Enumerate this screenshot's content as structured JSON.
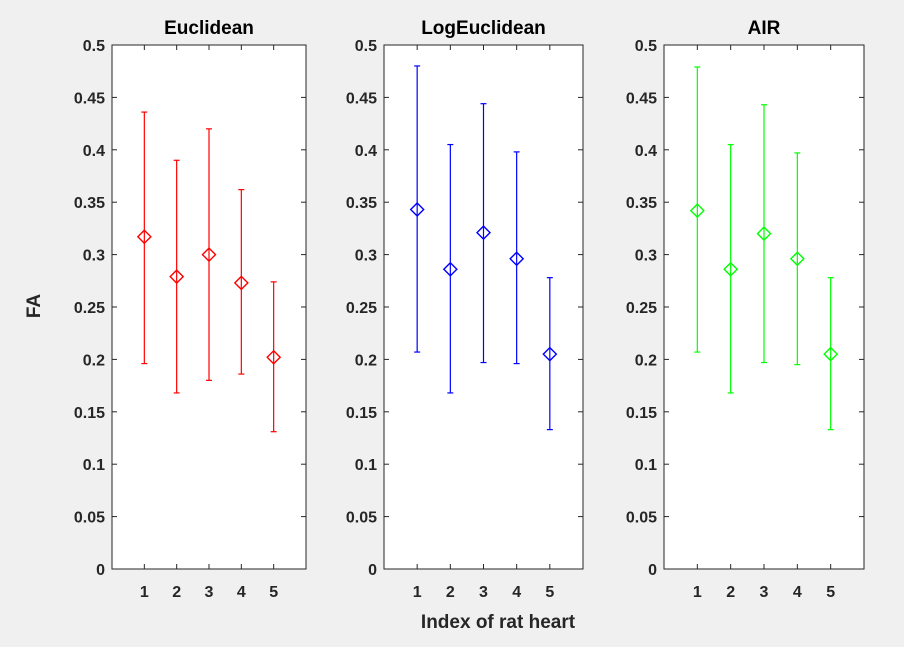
{
  "figure": {
    "background": "#f0f0f0",
    "axes_background": "#ffffff",
    "axes_color": "#262626",
    "xlabel": "Index of rat heart",
    "ylabel": "FA"
  },
  "chart_data": [
    {
      "type": "scatter",
      "title": "Euclidean",
      "color": "#ff0000",
      "marker": "diamond",
      "x": [
        1,
        2,
        3,
        4,
        5
      ],
      "y": [
        0.317,
        0.279,
        0.3,
        0.273,
        0.202
      ],
      "error_lower": [
        0.196,
        0.168,
        0.18,
        0.186,
        0.131
      ],
      "error_upper": [
        0.436,
        0.39,
        0.42,
        0.362,
        0.274
      ],
      "xlim": [
        0,
        6
      ],
      "ylim": [
        0,
        0.5
      ],
      "xticks": [
        "1",
        "2",
        "3",
        "4",
        "5"
      ],
      "yticks": [
        "0",
        "0.05",
        "0.1",
        "0.15",
        "0.2",
        "0.25",
        "0.3",
        "0.35",
        "0.4",
        "0.45",
        "0.5"
      ],
      "grid": false
    },
    {
      "type": "scatter",
      "title": "LogEuclidean",
      "color": "#0000ff",
      "marker": "diamond",
      "x": [
        1,
        2,
        3,
        4,
        5
      ],
      "y": [
        0.343,
        0.286,
        0.321,
        0.296,
        0.205
      ],
      "error_lower": [
        0.207,
        0.168,
        0.197,
        0.196,
        0.133
      ],
      "error_upper": [
        0.48,
        0.405,
        0.444,
        0.398,
        0.278
      ],
      "xlim": [
        0,
        6
      ],
      "ylim": [
        0,
        0.5
      ],
      "xticks": [
        "1",
        "2",
        "3",
        "4",
        "5"
      ],
      "yticks": [
        "0",
        "0.05",
        "0.1",
        "0.15",
        "0.2",
        "0.25",
        "0.3",
        "0.35",
        "0.4",
        "0.45",
        "0.5"
      ],
      "grid": false
    },
    {
      "type": "scatter",
      "title": "AIR",
      "color": "#00ff00",
      "marker": "diamond",
      "x": [
        1,
        2,
        3,
        4,
        5
      ],
      "y": [
        0.342,
        0.286,
        0.32,
        0.296,
        0.205
      ],
      "error_lower": [
        0.207,
        0.168,
        0.197,
        0.195,
        0.133
      ],
      "error_upper": [
        0.479,
        0.405,
        0.443,
        0.397,
        0.278
      ],
      "xlim": [
        0,
        6
      ],
      "ylim": [
        0,
        0.5
      ],
      "xticks": [
        "1",
        "2",
        "3",
        "4",
        "5"
      ],
      "yticks": [
        "0",
        "0.05",
        "0.1",
        "0.15",
        "0.2",
        "0.25",
        "0.3",
        "0.35",
        "0.4",
        "0.45",
        "0.5"
      ],
      "grid": false
    }
  ]
}
